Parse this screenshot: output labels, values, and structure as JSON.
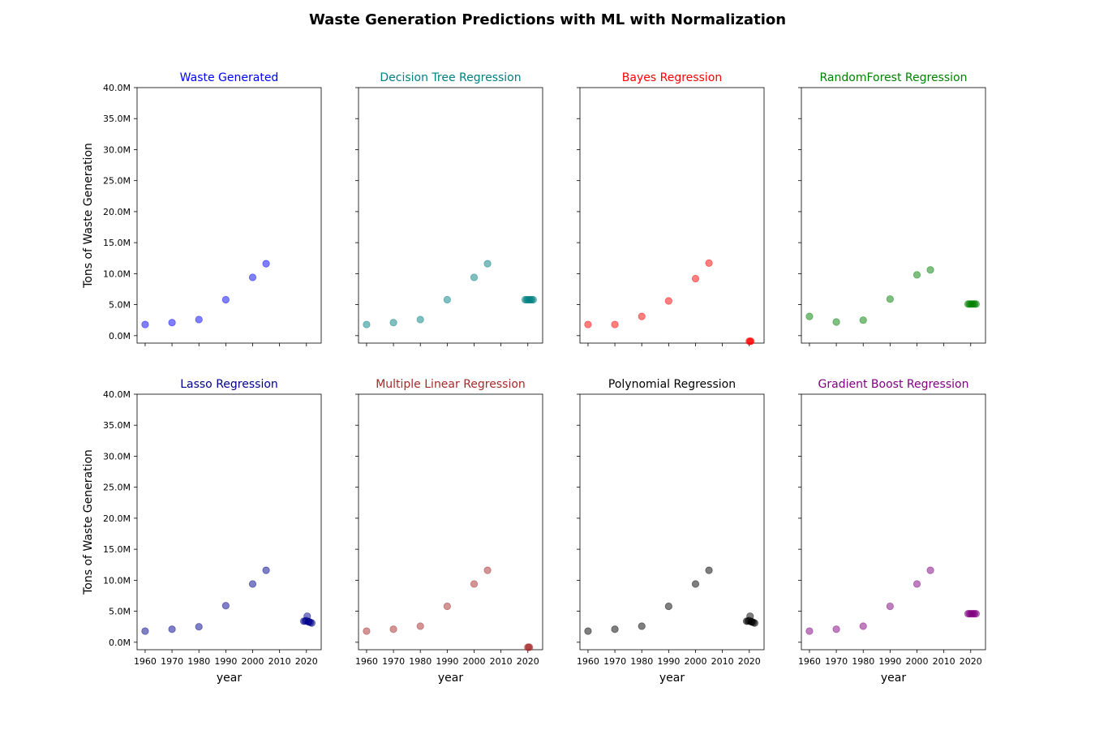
{
  "title": "Waste Generation Predictions with ML with Normalization",
  "shared_axes": {
    "xlabel": "year",
    "ylabel": "Tons of Waste Generation",
    "xticks": [
      1960,
      1970,
      1980,
      1990,
      2000,
      2010,
      2020
    ],
    "yticks": [
      0,
      5000000,
      10000000,
      15000000,
      20000000,
      25000000,
      30000000,
      35000000,
      40000000
    ],
    "ytick_labels": [
      "0.0M",
      "5.0M",
      "10.0M",
      "15.0M",
      "20.0M",
      "25.0M",
      "30.0M",
      "35.0M",
      "40.0M"
    ],
    "xlim": [
      1957,
      2025.5
    ],
    "ylim": [
      -1200000,
      40000000
    ]
  },
  "chart_data": [
    {
      "type": "scatter",
      "title": "Waste Generated",
      "color": "#0000ff",
      "alpha": 0.5,
      "x": [
        1960,
        1970,
        1980,
        1990,
        2000,
        2005
      ],
      "y": [
        1800000,
        2100000,
        2600000,
        5800000,
        9400000,
        11600000
      ]
    },
    {
      "type": "scatter",
      "title": "Decision Tree Regression",
      "color": "#008080",
      "alpha": 0.5,
      "x": [
        1960,
        1970,
        1980,
        1990,
        2000,
        2005,
        2019,
        2019.5,
        2020,
        2020.5,
        2021,
        2021.5,
        2022
      ],
      "y": [
        1800000,
        2100000,
        2600000,
        5800000,
        9400000,
        11600000,
        5800000,
        5800000,
        5800000,
        5800000,
        5800000,
        5800000,
        5800000
      ]
    },
    {
      "type": "scatter",
      "title": "Bayes Regression",
      "color": "#ff0000",
      "alpha": 0.5,
      "x": [
        1960,
        1970,
        1980,
        1990,
        2000,
        2005,
        2020,
        2020.3,
        2020.6
      ],
      "y": [
        1800000,
        1800000,
        3100000,
        5600000,
        9200000,
        11700000,
        -900000,
        -900000,
        -900000
      ]
    },
    {
      "type": "scatter",
      "title": "RandomForest Regression",
      "color": "#008000",
      "alpha": 0.5,
      "x": [
        1960,
        1970,
        1980,
        1990,
        2000,
        2005,
        2019,
        2019.5,
        2020,
        2020.5,
        2021,
        2021.5,
        2022
      ],
      "y": [
        3100000,
        2200000,
        2500000,
        5900000,
        9800000,
        10600000,
        5100000,
        5100000,
        5100000,
        5100000,
        5100000,
        5100000,
        5100000
      ]
    },
    {
      "type": "scatter",
      "title": "Lasso Regression",
      "color": "#00008b",
      "alpha": 0.5,
      "x": [
        1960,
        1970,
        1980,
        1990,
        2000,
        2005,
        2019,
        2019.5,
        2020,
        2020.3,
        2020.7,
        2021,
        2021.5,
        2022
      ],
      "y": [
        1800000,
        2100000,
        2500000,
        5900000,
        9400000,
        11600000,
        3400000,
        3400000,
        3500000,
        4200000,
        3300000,
        3300000,
        3200000,
        3100000
      ]
    },
    {
      "type": "scatter",
      "title": "Multiple Linear Regression",
      "color": "#a52a2a",
      "alpha": 0.5,
      "x": [
        1960,
        1970,
        1980,
        1990,
        2000,
        2005,
        2020,
        2020.3,
        2020.6
      ],
      "y": [
        1800000,
        2100000,
        2600000,
        5800000,
        9400000,
        11600000,
        -800000,
        -800000,
        -800000
      ]
    },
    {
      "type": "scatter",
      "title": "Polynomial Regression",
      "color": "#000000",
      "alpha": 0.5,
      "x": [
        1960,
        1970,
        1980,
        1990,
        2000,
        2005,
        2019,
        2019.5,
        2020,
        2020.3,
        2020.7,
        2021,
        2021.5,
        2022
      ],
      "y": [
        1800000,
        2100000,
        2600000,
        5800000,
        9400000,
        11600000,
        3400000,
        3400000,
        3500000,
        4200000,
        3300000,
        3300000,
        3200000,
        3100000
      ]
    },
    {
      "type": "scatter",
      "title": "Gradient Boost Regression",
      "color": "#800080",
      "alpha": 0.5,
      "x": [
        1960,
        1970,
        1980,
        1990,
        2000,
        2005,
        2019,
        2019.5,
        2020,
        2020.5,
        2021,
        2021.5,
        2022
      ],
      "y": [
        1800000,
        2100000,
        2600000,
        5800000,
        9400000,
        11600000,
        4600000,
        4600000,
        4600000,
        4600000,
        4600000,
        4600000,
        4600000
      ]
    }
  ]
}
